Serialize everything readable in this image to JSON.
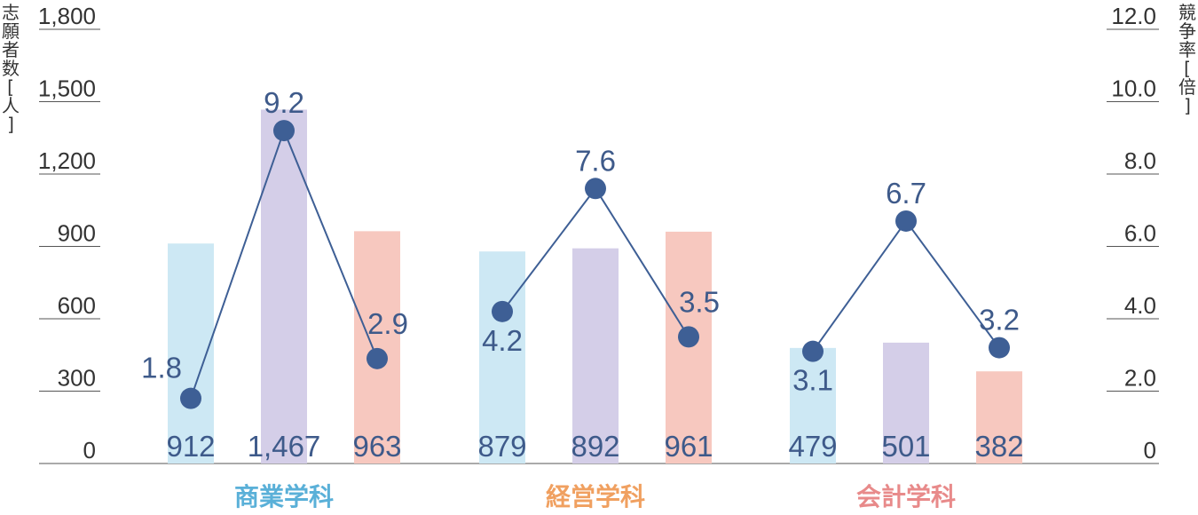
{
  "chart_data": {
    "type": "bar",
    "categories": [
      "商業学科",
      "経営学科",
      "会計学科"
    ],
    "category_colors": [
      "#5ab0d8",
      "#f0a060",
      "#e88a8a"
    ],
    "left_axis": {
      "title_chars": [
        "志",
        "願",
        "者",
        "数",
        "[",
        "人",
        "]"
      ],
      "ticks": [
        "0",
        "300",
        "600",
        "900",
        "1,200",
        "1,500",
        "1,800"
      ],
      "ylim": [
        0,
        1800
      ]
    },
    "right_axis": {
      "title_chars": [
        "競",
        "争",
        "率",
        "[",
        "倍",
        "]"
      ],
      "ticks": [
        "0",
        "2.0",
        "4.0",
        "6.0",
        "8.0",
        "10.0",
        "12.0"
      ],
      "ylim": [
        0,
        12
      ]
    },
    "bars": [
      {
        "category": 0,
        "value": 912,
        "label": "912",
        "color": "#cde8f4"
      },
      {
        "category": 0,
        "value": 1467,
        "label": "1,467",
        "color": "#d4cee8"
      },
      {
        "category": 0,
        "value": 963,
        "label": "963",
        "color": "#f7c8bf"
      },
      {
        "category": 1,
        "value": 879,
        "label": "879",
        "color": "#cde8f4"
      },
      {
        "category": 1,
        "value": 892,
        "label": "892",
        "color": "#d4cee8"
      },
      {
        "category": 1,
        "value": 961,
        "label": "961",
        "color": "#f7c8bf"
      },
      {
        "category": 2,
        "value": 479,
        "label": "479",
        "color": "#cde8f4"
      },
      {
        "category": 2,
        "value": 501,
        "label": "501",
        "color": "#d4cee8"
      },
      {
        "category": 2,
        "value": 382,
        "label": "382",
        "color": "#f7c8bf"
      }
    ],
    "rate_series": [
      {
        "category": 0,
        "points": [
          {
            "value": 1.8,
            "label": "1.8",
            "label_pos": "left"
          },
          {
            "value": 9.2,
            "label": "9.2",
            "label_pos": "above"
          },
          {
            "value": 2.9,
            "label": "2.9",
            "label_pos": "above-right"
          }
        ]
      },
      {
        "category": 1,
        "points": [
          {
            "value": 4.2,
            "label": "4.2",
            "label_pos": "below"
          },
          {
            "value": 7.6,
            "label": "7.6",
            "label_pos": "above"
          },
          {
            "value": 3.5,
            "label": "3.5",
            "label_pos": "above-right"
          }
        ]
      },
      {
        "category": 2,
        "points": [
          {
            "value": 3.1,
            "label": "3.1",
            "label_pos": "below"
          },
          {
            "value": 6.7,
            "label": "6.7",
            "label_pos": "above"
          },
          {
            "value": 3.2,
            "label": "3.2",
            "label_pos": "above"
          }
        ]
      }
    ],
    "line_color": "#3e5f95",
    "grid": false
  }
}
